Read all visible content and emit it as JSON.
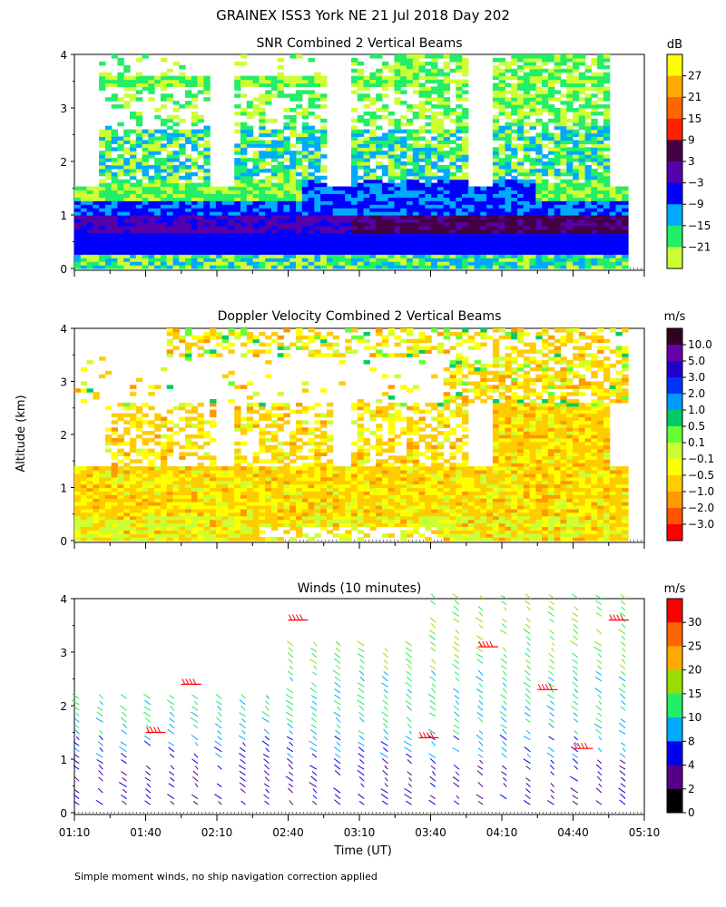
{
  "figure": {
    "title": "GRAINEX ISS3 York NE  21 Jul 2018 Day 202",
    "ylabel": "Altitude (km)",
    "xlabel": "Time (UT)",
    "footnote": "Simple moment winds, no ship navigation correction applied"
  },
  "chart_data": [
    {
      "type": "heatmap",
      "title": "SNR Combined 2 Vertical Beams",
      "xlabel": "Time (UT)",
      "ylabel": "Altitude (km)",
      "xlim": [
        "01:10",
        "05:10"
      ],
      "ylim": [
        0,
        4
      ],
      "yticks": [
        "0",
        "1",
        "2",
        "3",
        "4"
      ],
      "colorbar": {
        "unit": "dB",
        "levels": [
          "27",
          "21",
          "15",
          "9",
          "3",
          "−3",
          "−9",
          "−15",
          "−21"
        ],
        "colors": [
          "#ffff00",
          "#ffaa00",
          "#ff6600",
          "#ff2200",
          "#440044",
          "#5500aa",
          "#0000ff",
          "#00aaff",
          "#22ee66",
          "#ccff33"
        ]
      },
      "gaps_minutes": [
        [
          0,
          12
        ],
        [
          60,
          70
        ],
        [
          110,
          120
        ],
        [
          170,
          180
        ],
        [
          230,
          240
        ],
        [
          290,
          300
        ]
      ]
    },
    {
      "type": "heatmap",
      "title": "Doppler Velocity Combined 2 Vertical Beams",
      "xlabel": "Time (UT)",
      "ylabel": "Altitude (km)",
      "xlim": [
        "01:10",
        "05:10"
      ],
      "ylim": [
        0,
        4
      ],
      "yticks": [
        "0",
        "1",
        "2",
        "3",
        "4"
      ],
      "colorbar": {
        "unit": "m/s",
        "levels": [
          "10.0",
          "5.0",
          "3.0",
          "2.0",
          "1.0",
          "0.5",
          "0.1",
          "−0.1",
          "−0.5",
          "−1.0",
          "−2.0",
          "−3.0"
        ],
        "colors": [
          "#330022",
          "#6600aa",
          "#2200cc",
          "#0033ff",
          "#0099ff",
          "#00cc66",
          "#66ff33",
          "#ccff33",
          "#ffff00",
          "#ffcc00",
          "#ff9900",
          "#ff5500",
          "#ff0000"
        ]
      }
    },
    {
      "type": "scatter",
      "title": "Winds (10 minutes)",
      "xlabel": "Time (UT)",
      "ylabel": "Altitude (km)",
      "xlim": [
        "01:10",
        "05:10"
      ],
      "ylim": [
        0,
        4
      ],
      "xticks": [
        "01:10",
        "01:40",
        "02:10",
        "02:40",
        "03:10",
        "03:40",
        "04:10",
        "04:40",
        "05:10"
      ],
      "yticks": [
        "0",
        "1",
        "2",
        "3",
        "4"
      ],
      "colorbar": {
        "unit": "m/s",
        "levels": [
          "30",
          "25",
          "20",
          "15",
          "10",
          "8",
          "4",
          "2",
          "0"
        ],
        "colors": [
          "#ff0000",
          "#ff6600",
          "#ffaa00",
          "#99dd00",
          "#22ee66",
          "#00aaff",
          "#0000ee",
          "#550088",
          "#000000"
        ]
      }
    }
  ]
}
